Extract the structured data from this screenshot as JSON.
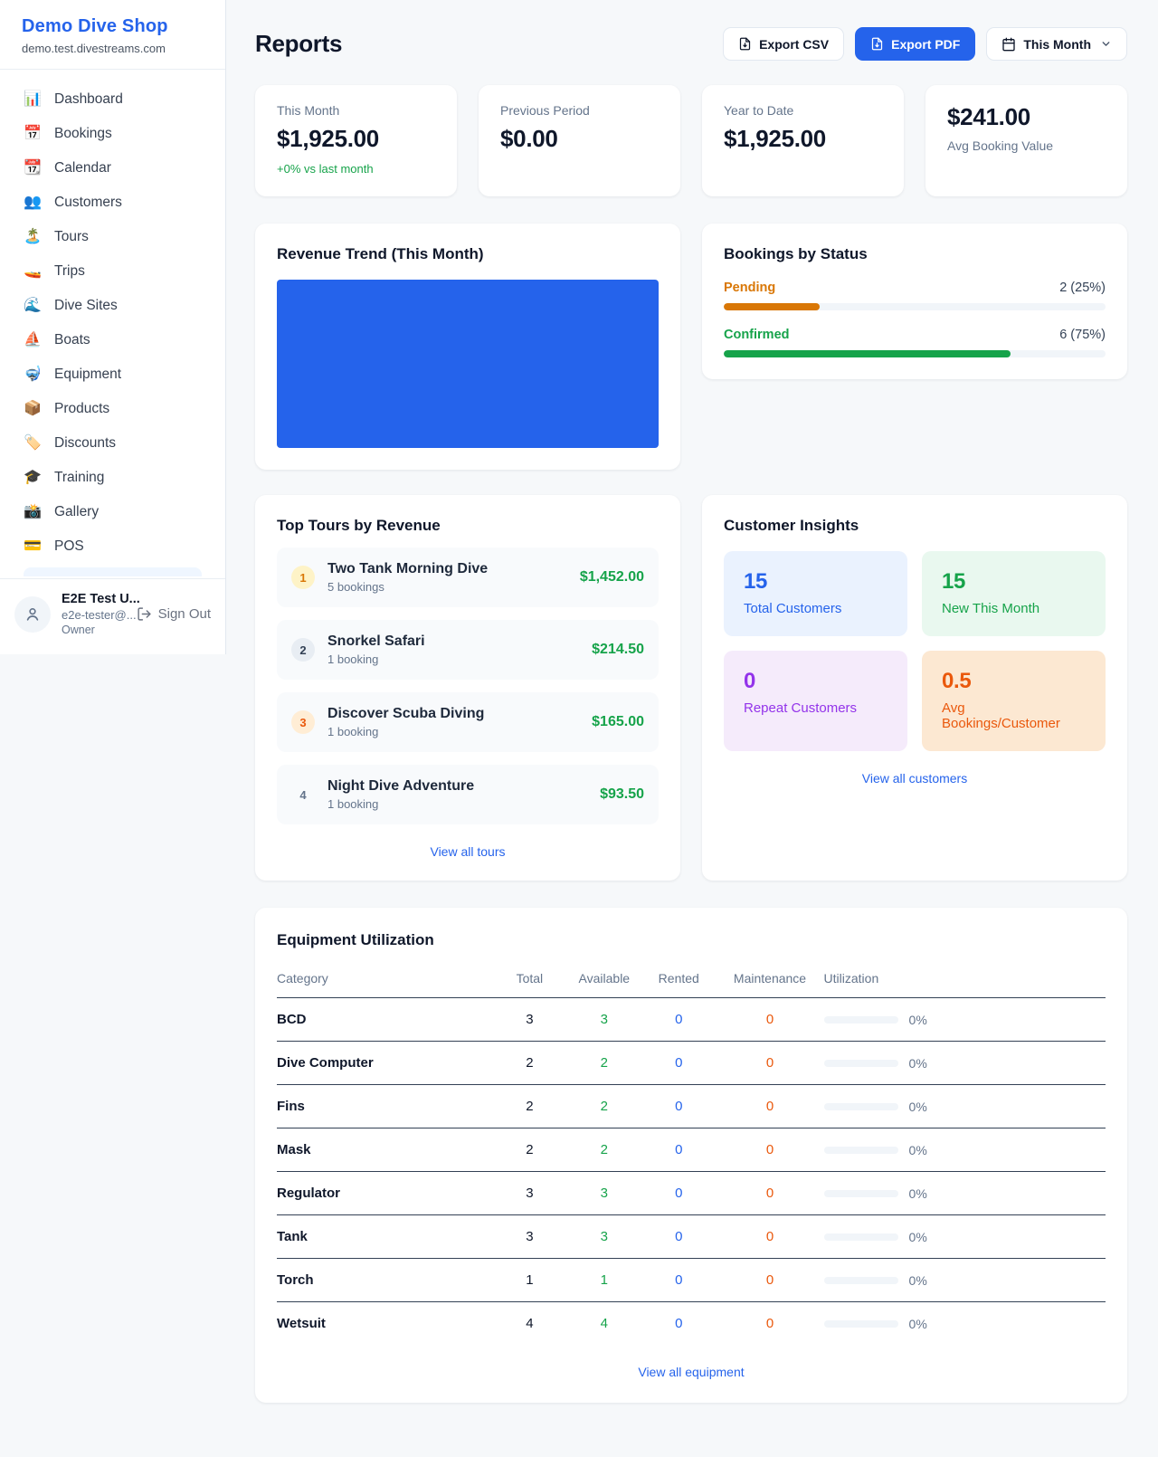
{
  "brand": {
    "name": "Demo Dive Shop",
    "domain": "demo.test.divestreams.com"
  },
  "sidebar": {
    "items": [
      {
        "icon": "📊",
        "label": "Dashboard"
      },
      {
        "icon": "📅",
        "label": "Bookings"
      },
      {
        "icon": "📆",
        "label": "Calendar"
      },
      {
        "icon": "👥",
        "label": "Customers"
      },
      {
        "icon": "🏝️",
        "label": "Tours"
      },
      {
        "icon": "🚤",
        "label": "Trips"
      },
      {
        "icon": "🌊",
        "label": "Dive Sites"
      },
      {
        "icon": "⛵",
        "label": "Boats"
      },
      {
        "icon": "🤿",
        "label": "Equipment"
      },
      {
        "icon": "📦",
        "label": "Products"
      },
      {
        "icon": "🏷️",
        "label": "Discounts"
      },
      {
        "icon": "🎓",
        "label": "Training"
      },
      {
        "icon": "📸",
        "label": "Gallery"
      },
      {
        "icon": "💳",
        "label": "POS"
      }
    ]
  },
  "user": {
    "name": "E2E Test U...",
    "email": "e2e-tester@...",
    "role": "Owner",
    "sign_out": "Sign Out"
  },
  "header": {
    "title": "Reports",
    "export_csv": "Export CSV",
    "export_pdf": "Export PDF",
    "period": "This Month"
  },
  "stats": {
    "this_month": {
      "label": "This Month",
      "value": "$1,925.00",
      "delta": "+0% vs last month"
    },
    "previous_period": {
      "label": "Previous Period",
      "value": "$0.00"
    },
    "year_to_date": {
      "label": "Year to Date",
      "value": "$1,925.00"
    },
    "avg_booking": {
      "value": "$241.00",
      "label": "Avg Booking Value"
    }
  },
  "revenue_trend": {
    "title": "Revenue Trend (This Month)",
    "fill_color": "#2563eb"
  },
  "bookings_by_status": {
    "title": "Bookings by Status",
    "rows": [
      {
        "label": "Pending",
        "value": "2 (25%)",
        "pct": 25,
        "color": "#d97706"
      },
      {
        "label": "Confirmed",
        "value": "6 (75%)",
        "pct": 75,
        "color": "#16a34a"
      }
    ]
  },
  "top_tours": {
    "title": "Top Tours by Revenue",
    "link": "View all tours",
    "items": [
      {
        "rank": "1",
        "name": "Two Tank Morning Dive",
        "bookings": "5 bookings",
        "amount": "$1,452.00"
      },
      {
        "rank": "2",
        "name": "Snorkel Safari",
        "bookings": "1 booking",
        "amount": "$214.50"
      },
      {
        "rank": "3",
        "name": "Discover Scuba Diving",
        "bookings": "1 booking",
        "amount": "$165.00"
      },
      {
        "rank": "4",
        "name": "Night Dive Adventure",
        "bookings": "1 booking",
        "amount": "$93.50"
      }
    ]
  },
  "customer_insights": {
    "title": "Customer Insights",
    "link": "View all customers",
    "tiles": [
      {
        "value": "15",
        "label": "Total Customers",
        "theme": "blue"
      },
      {
        "value": "15",
        "label": "New This Month",
        "theme": "green"
      },
      {
        "value": "0",
        "label": "Repeat Customers",
        "theme": "purple"
      },
      {
        "value": "0.5",
        "label": "Avg Bookings/Customer",
        "theme": "orange"
      }
    ]
  },
  "equipment": {
    "title": "Equipment Utilization",
    "link": "View all equipment",
    "columns": [
      "Category",
      "Total",
      "Available",
      "Rented",
      "Maintenance",
      "Utilization"
    ],
    "rows": [
      {
        "category": "BCD",
        "total": "3",
        "available": "3",
        "rented": "0",
        "maintenance": "0",
        "utilization": "0%"
      },
      {
        "category": "Dive Computer",
        "total": "2",
        "available": "2",
        "rented": "0",
        "maintenance": "0",
        "utilization": "0%"
      },
      {
        "category": "Fins",
        "total": "2",
        "available": "2",
        "rented": "0",
        "maintenance": "0",
        "utilization": "0%"
      },
      {
        "category": "Mask",
        "total": "2",
        "available": "2",
        "rented": "0",
        "maintenance": "0",
        "utilization": "0%"
      },
      {
        "category": "Regulator",
        "total": "3",
        "available": "3",
        "rented": "0",
        "maintenance": "0",
        "utilization": "0%"
      },
      {
        "category": "Tank",
        "total": "3",
        "available": "3",
        "rented": "0",
        "maintenance": "0",
        "utilization": "0%"
      },
      {
        "category": "Torch",
        "total": "1",
        "available": "1",
        "rented": "0",
        "maintenance": "0",
        "utilization": "0%"
      },
      {
        "category": "Wetsuit",
        "total": "4",
        "available": "4",
        "rented": "0",
        "maintenance": "0",
        "utilization": "0%"
      }
    ]
  },
  "colors": {
    "primary": "#2563eb",
    "green": "#16a34a",
    "orange": "#ea580c",
    "amber": "#d97706"
  }
}
